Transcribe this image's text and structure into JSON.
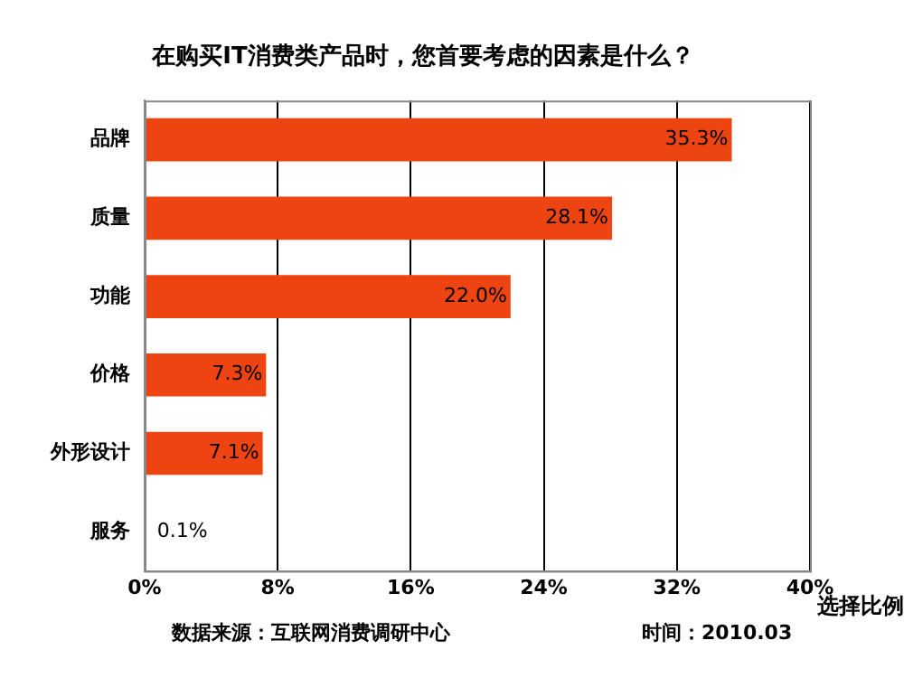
{
  "chart_data": {
    "type": "bar",
    "orientation": "horizontal",
    "title": "在购买IT消费类产品时，您首要考虑的因素是什么？",
    "xlabel": "选择比例",
    "categories": [
      "品牌",
      "质量",
      "功能",
      "价格",
      "外形设计",
      "服务"
    ],
    "values": [
      35.3,
      28.1,
      22.0,
      7.3,
      7.1,
      0.1
    ],
    "value_labels": [
      "35.3%",
      "28.1%",
      "22.0%",
      "7.3%",
      "7.1%",
      "0.1%"
    ],
    "color": "#ee4411",
    "xlim": [
      0,
      40
    ],
    "xticks": [
      {
        "value": 0,
        "label": "0%"
      },
      {
        "value": 8,
        "label": "8%"
      },
      {
        "value": 16,
        "label": "16%"
      },
      {
        "value": 24,
        "label": "24%"
      },
      {
        "value": 32,
        "label": "32%"
      },
      {
        "value": 40,
        "label": "40%"
      }
    ],
    "grid": "x",
    "annotations": [
      "数据来源：互联网消费调研中心",
      "时间：2010.03"
    ]
  }
}
